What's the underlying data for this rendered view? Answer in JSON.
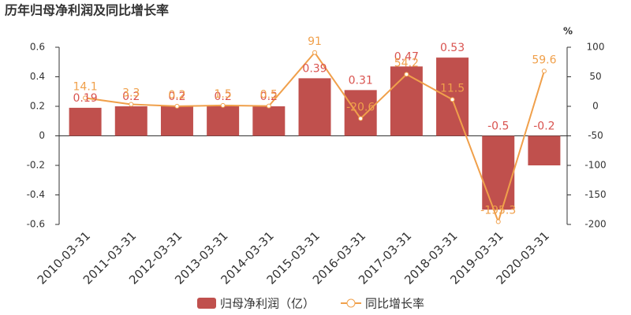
{
  "chart_data": {
    "type": "bar-line",
    "title": "历年归母净利润及同比增长率",
    "y2_label": "%",
    "categories": [
      "2010-03-31",
      "2011-03-31",
      "2012-03-31",
      "2013-03-31",
      "2014-03-31",
      "2015-03-31",
      "2016-03-31",
      "2017-03-31",
      "2018-03-31",
      "2019-03-31",
      "2020-03-31"
    ],
    "series": [
      {
        "name": "归母净利润（亿）",
        "type": "bar",
        "color": "#c0504d",
        "values": [
          0.19,
          0.2,
          0.2,
          0.2,
          0.2,
          0.39,
          0.31,
          0.47,
          0.53,
          -0.5,
          -0.2
        ]
      },
      {
        "name": "同比增长率",
        "type": "line",
        "axis": "y2",
        "color": "#f0a04b",
        "values": [
          14.1,
          3.3,
          0.2,
          1.5,
          0.5,
          91,
          -20.6,
          54.2,
          11.5,
          -195.3,
          59.6
        ]
      }
    ],
    "ylim": [
      -0.6,
      0.6
    ],
    "yticks": [
      -0.6,
      -0.4,
      -0.2,
      0,
      0.2,
      0.4,
      0.6
    ],
    "y2lim": [
      -200,
      100
    ],
    "y2ticks": [
      -200,
      -150,
      -100,
      -50,
      0,
      50,
      100
    ]
  }
}
